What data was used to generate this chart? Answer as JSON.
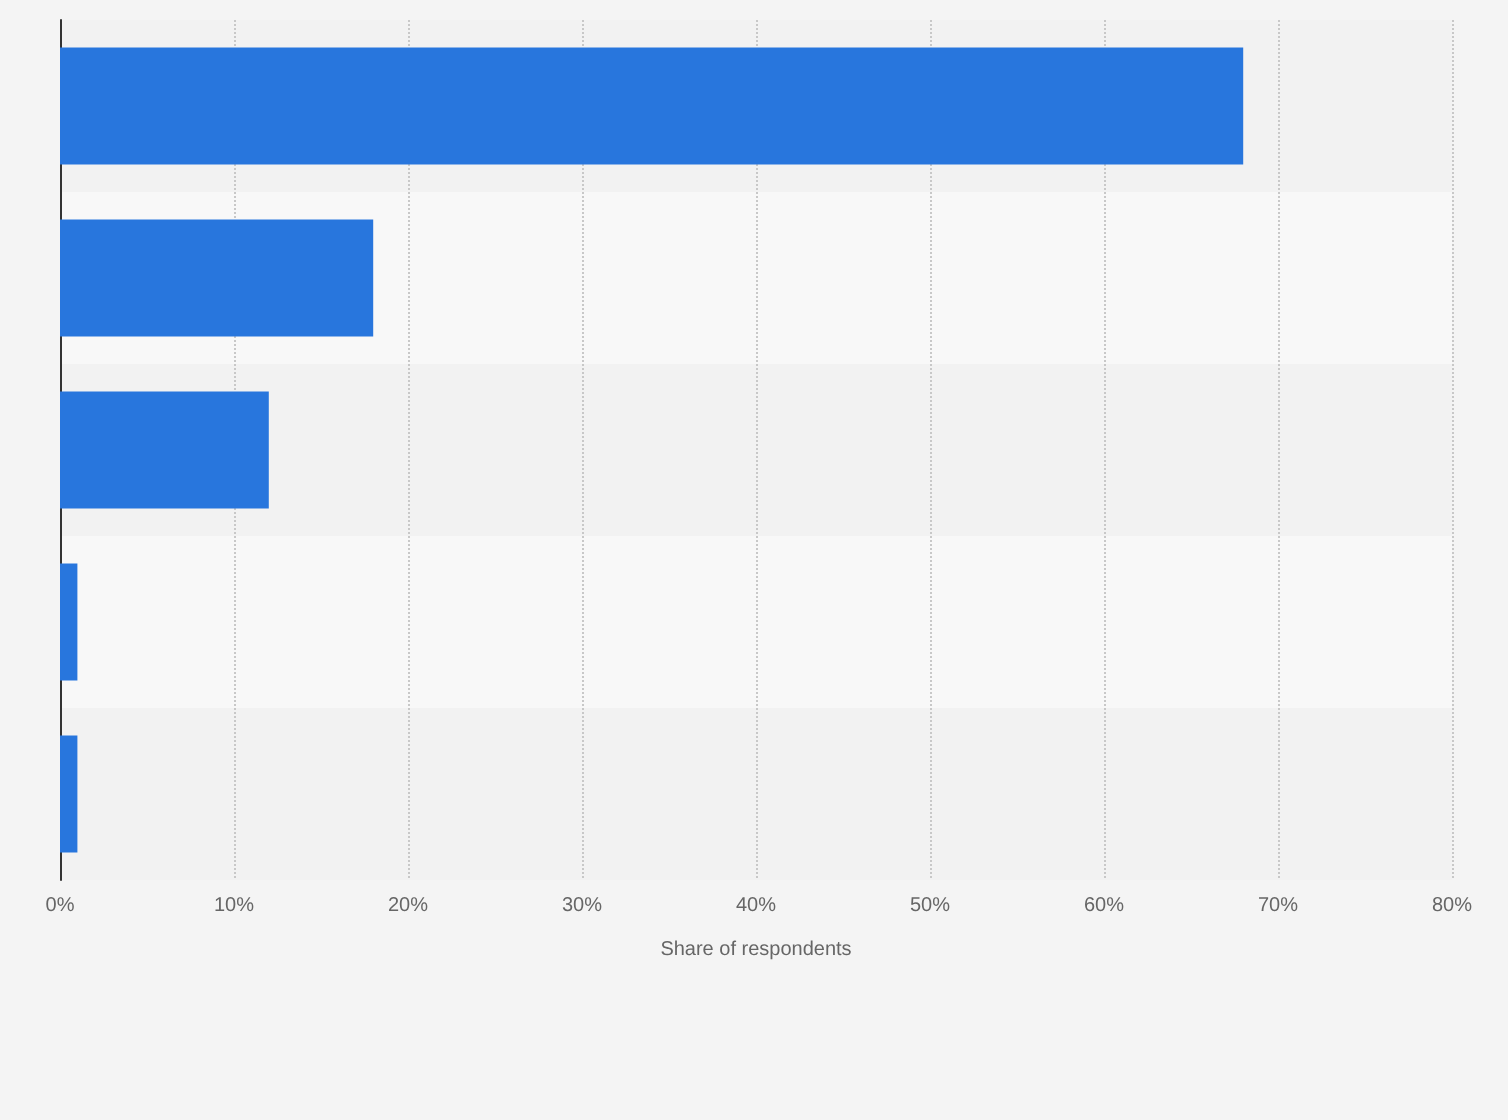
{
  "chart_data": {
    "type": "bar",
    "orientation": "horizontal",
    "xlabel": "Share of respondents",
    "categories": [
      null,
      null,
      null,
      null,
      null
    ],
    "values": [
      68,
      18,
      12,
      1,
      1
    ],
    "color": "#2876dd",
    "xlim": [
      0,
      80
    ],
    "xticks": [
      {
        "value": 0,
        "label": "0%"
      },
      {
        "value": 10,
        "label": "10%"
      },
      {
        "value": 20,
        "label": "20%"
      },
      {
        "value": 30,
        "label": "30%"
      },
      {
        "value": 40,
        "label": "40%"
      },
      {
        "value": 50,
        "label": "50%"
      },
      {
        "value": 60,
        "label": "60%"
      },
      {
        "value": 70,
        "label": "70%"
      },
      {
        "value": 80,
        "label": "80%"
      }
    ],
    "grid": "x"
  }
}
